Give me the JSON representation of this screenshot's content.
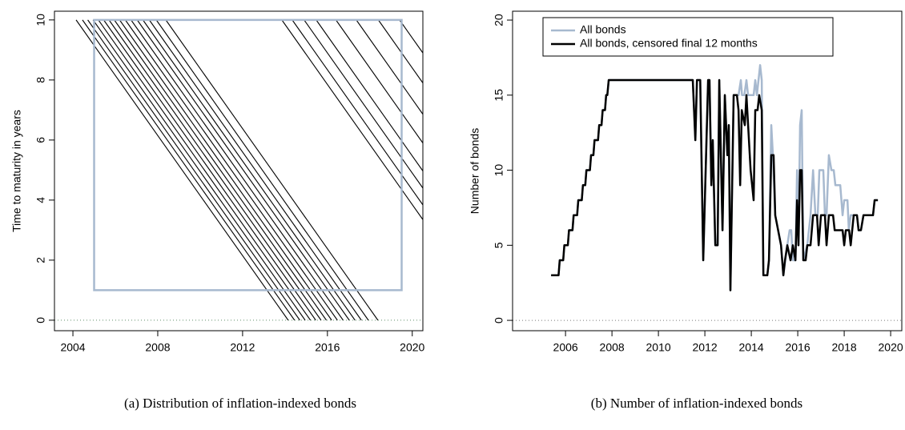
{
  "chart_data": [
    {
      "type": "segments",
      "caption": "(a) Distribution of inflation-indexed bonds",
      "ylabel": "Time to maturity in years",
      "span": 10,
      "maturities": [
        2014.15,
        2014.45,
        2014.7,
        2014.95,
        2015.2,
        2015.45,
        2015.7,
        2015.95,
        2016.2,
        2016.47,
        2016.74,
        2017.03,
        2017.3,
        2017.6,
        2017.93,
        2018.38,
        2023.85,
        2024.34,
        2024.9,
        2025.47,
        2026.4,
        2027.36,
        2028.4,
        2029.4
      ],
      "color": "#000000",
      "box": {
        "xlim": [
          2005,
          2019.5
        ],
        "ylim": [
          1,
          10
        ],
        "color": "#a7b9cf"
      },
      "hline": {
        "value": 0,
        "color": "#5f8f6a"
      },
      "xlim": [
        2003.13,
        2020.5
      ],
      "ylim": [
        -0.35,
        10.29
      ],
      "xticks": [
        2004,
        2008,
        2012,
        2016,
        2020
      ],
      "yticks": [
        0,
        2,
        4,
        6,
        8,
        10
      ]
    },
    {
      "type": "line",
      "caption": "(b) Number of inflation-indexed bonds",
      "ylabel": "Number of bonds",
      "legend": "topleft",
      "hline": {
        "value": 0,
        "color": "#777777"
      },
      "xlim": [
        2003.72,
        2020.48
      ],
      "ylim": [
        -0.69,
        20.59
      ],
      "xticks": [
        2006,
        2008,
        2010,
        2012,
        2014,
        2016,
        2018,
        2020
      ],
      "yticks": [
        0,
        5,
        10,
        15,
        20
      ],
      "series": [
        {
          "name": "All bonds",
          "color": "#a7b9cf",
          "width": 2.5,
          "x": [
            2005.38,
            2005.7,
            2005.75,
            2005.9,
            2005.95,
            2006.1,
            2006.15,
            2006.3,
            2006.35,
            2006.5,
            2006.55,
            2006.7,
            2006.75,
            2006.85,
            2006.9,
            2007.05,
            2007.1,
            2007.2,
            2007.25,
            2007.4,
            2007.45,
            2007.55,
            2007.6,
            2007.7,
            2007.75,
            2007.8,
            2007.86,
            2011.48,
            2011.59,
            2011.66,
            2011.8,
            2011.93,
            2012.14,
            2012.2,
            2012.28,
            2012.34,
            2012.45,
            2012.55,
            2012.62,
            2012.76,
            2012.86,
            2012.97,
            2013.03,
            2013.1,
            2013.24,
            2013.45,
            2013.55,
            2013.6,
            2013.7,
            2013.79,
            2013.86,
            2013.97,
            2014.1,
            2014.17,
            2014.24,
            2014.38,
            2014.45,
            2014.52,
            2014.69,
            2014.76,
            2014.86,
            2014.93,
            2015.03,
            2015.28,
            2015.38,
            2015.55,
            2015.65,
            2015.72,
            2015.79,
            2015.9,
            2015.97,
            2016.03,
            2016.1,
            2016.17,
            2016.24,
            2016.41,
            2016.55,
            2016.66,
            2016.76,
            2016.86,
            2016.93,
            2017.1,
            2017.17,
            2017.24,
            2017.34,
            2017.45,
            2017.55,
            2017.62,
            2017.83,
            2017.93,
            2018.0,
            2018.14,
            2018.2,
            2018.28,
            2018.41,
            2018.55,
            2018.62,
            2018.72,
            2018.83,
            2019.24,
            2019.31,
            2019.45
          ],
          "values": [
            3,
            3,
            4,
            4,
            5,
            5,
            6,
            6,
            7,
            7,
            8,
            8,
            9,
            9,
            10,
            10,
            11,
            11,
            12,
            12,
            13,
            13,
            14,
            14,
            15,
            15,
            16,
            16,
            12,
            16,
            16,
            4,
            16,
            16,
            9,
            12,
            5,
            5,
            16,
            6,
            15,
            11,
            13,
            2,
            15,
            15,
            16,
            15,
            15,
            16,
            15,
            15,
            15,
            16,
            15,
            17,
            16,
            3,
            3,
            4,
            13,
            11,
            7,
            5,
            3,
            5,
            6,
            6,
            4,
            4,
            10,
            5,
            13,
            14,
            4,
            5,
            7,
            10,
            7,
            7,
            10,
            10,
            7,
            7,
            11,
            10,
            10,
            9,
            9,
            7,
            8,
            8,
            6,
            7,
            7,
            7,
            6,
            6,
            7,
            7,
            8,
            8
          ]
        },
        {
          "name": "All bonds, censored final 12 months",
          "color": "#000000",
          "width": 2.5,
          "x": [
            2005.38,
            2005.7,
            2005.75,
            2005.9,
            2005.95,
            2006.1,
            2006.15,
            2006.3,
            2006.35,
            2006.5,
            2006.55,
            2006.7,
            2006.75,
            2006.85,
            2006.9,
            2007.05,
            2007.1,
            2007.2,
            2007.25,
            2007.4,
            2007.45,
            2007.55,
            2007.6,
            2007.7,
            2007.75,
            2007.8,
            2007.86,
            2011.48,
            2011.59,
            2011.66,
            2011.8,
            2011.93,
            2012.14,
            2012.2,
            2012.28,
            2012.34,
            2012.45,
            2012.55,
            2012.62,
            2012.76,
            2012.86,
            2012.97,
            2013.03,
            2013.1,
            2013.24,
            2013.38,
            2013.45,
            2013.52,
            2013.59,
            2013.72,
            2013.79,
            2013.97,
            2014.1,
            2014.17,
            2014.27,
            2014.34,
            2014.45,
            2014.52,
            2014.69,
            2014.76,
            2014.86,
            2014.96,
            2015.03,
            2015.28,
            2015.38,
            2015.45,
            2015.55,
            2015.69,
            2015.79,
            2015.9,
            2015.97,
            2016.03,
            2016.1,
            2016.17,
            2016.24,
            2016.34,
            2016.41,
            2016.55,
            2016.66,
            2016.83,
            2016.9,
            2017.0,
            2017.17,
            2017.24,
            2017.34,
            2017.52,
            2017.59,
            2017.93,
            2018.0,
            2018.07,
            2018.21,
            2018.28,
            2018.41,
            2018.55,
            2018.62,
            2018.72,
            2018.83,
            2019.24,
            2019.31,
            2019.45
          ],
          "values": [
            3,
            3,
            4,
            4,
            5,
            5,
            6,
            6,
            7,
            7,
            8,
            8,
            9,
            9,
            10,
            10,
            11,
            11,
            12,
            12,
            13,
            13,
            14,
            14,
            15,
            15,
            16,
            16,
            12,
            16,
            16,
            4,
            16,
            16,
            9,
            12,
            5,
            5,
            16,
            6,
            15,
            11,
            13,
            2,
            15,
            15,
            14,
            9,
            14,
            13,
            15,
            10,
            8,
            14,
            14,
            15,
            14,
            3,
            3,
            4,
            11,
            11,
            7,
            5,
            3,
            4,
            5,
            4,
            5,
            4,
            8,
            5,
            10,
            10,
            4,
            4,
            5,
            5,
            7,
            7,
            5,
            7,
            7,
            5,
            7,
            7,
            6,
            6,
            5,
            6,
            6,
            5,
            7,
            7,
            6,
            6,
            7,
            7,
            8,
            8
          ]
        }
      ]
    }
  ]
}
